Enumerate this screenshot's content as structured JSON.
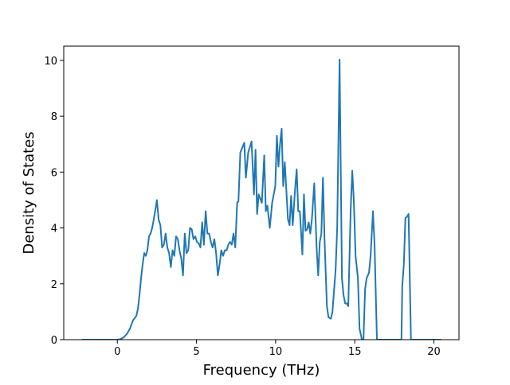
{
  "chart_data": {
    "type": "line",
    "xlabel": "Frequency (THz)",
    "ylabel": "Density of States",
    "color": "#1f77b4",
    "xlim": [
      -3.385,
      21.585
    ],
    "ylim": [
      0,
      10.51
    ],
    "xticks": [
      0,
      5,
      10,
      15,
      20
    ],
    "yticks": [
      0,
      2,
      4,
      6,
      8,
      10
    ],
    "x": [
      -2.25,
      0,
      0.2,
      0.4,
      0.6,
      0.8,
      1.0,
      1.2,
      1.3,
      1.4,
      1.5,
      1.6,
      1.7,
      1.8,
      1.9,
      2.0,
      2.1,
      2.2,
      2.3,
      2.5,
      2.61,
      2.72,
      2.83,
      2.94,
      3.05,
      3.16,
      3.27,
      3.38,
      3.49,
      3.6,
      3.71,
      3.82,
      3.93,
      4.04,
      4.15,
      4.26,
      4.37,
      4.48,
      4.59,
      4.7,
      4.81,
      4.92,
      5.03,
      5.14,
      5.25,
      5.36,
      5.47,
      5.58,
      5.69,
      5.8,
      5.91,
      6.02,
      6.13,
      6.24,
      6.35,
      6.46,
      6.57,
      6.68,
      6.79,
      6.9,
      7.01,
      7.12,
      7.23,
      7.34,
      7.45,
      7.57,
      7.65,
      7.77,
      8.02,
      8.12,
      8.27,
      8.48,
      8.63,
      8.73,
      8.83,
      8.93,
      9.13,
      9.28,
      9.38,
      9.48,
      9.63,
      9.78,
      9.98,
      10.08,
      10.18,
      10.28,
      10.38,
      10.48,
      10.58,
      10.78,
      10.88,
      10.98,
      11.08,
      11.23,
      11.33,
      11.43,
      11.53,
      11.69,
      11.79,
      11.89,
      11.99,
      12.09,
      12.19,
      12.29,
      12.44,
      12.59,
      12.69,
      12.79,
      12.89,
      12.99,
      13.09,
      13.24,
      13.34,
      13.49,
      13.59,
      13.79,
      13.89,
      14.04,
      14.19,
      14.29,
      14.39,
      14.49,
      14.59,
      14.74,
      14.84,
      14.94,
      15.05,
      15.2,
      15.3,
      15.45,
      15.55,
      15.65,
      15.75,
      15.9,
      16.0,
      16.15,
      16.25,
      16.4,
      17.95,
      18.0,
      18.1,
      18.2,
      18.3,
      18.4,
      18.55,
      20.45
    ],
    "values": [
      0,
      0,
      0.02,
      0.08,
      0.2,
      0.4,
      0.7,
      0.85,
      1.1,
      1.6,
      2.2,
      2.7,
      3.1,
      3.0,
      3.2,
      3.7,
      3.8,
      4.0,
      4.3,
      5.0,
      4.3,
      4.1,
      3.3,
      3.4,
      3.8,
      3.3,
      3.1,
      2.6,
      3.2,
      3.0,
      3.7,
      3.6,
      3.2,
      2.9,
      2.3,
      3.8,
      3.1,
      3.2,
      4.0,
      3.95,
      3.6,
      3.7,
      3.5,
      3.45,
      3.3,
      4.2,
      3.4,
      4.6,
      3.8,
      3.8,
      3.5,
      3.3,
      3.6,
      3.1,
      2.3,
      2.7,
      3.2,
      3.0,
      3.2,
      3.2,
      3.4,
      3.5,
      3.4,
      3.8,
      3.3,
      4.9,
      4.95,
      6.7,
      7.05,
      5.8,
      6.7,
      7.1,
      5.2,
      6.8,
      4.5,
      5.2,
      4.9,
      6.6,
      4.6,
      4.8,
      4.0,
      4.9,
      5.5,
      7.3,
      6.2,
      7.0,
      7.55,
      5.5,
      6.35,
      4.3,
      4.1,
      5.15,
      4.1,
      5.4,
      6.1,
      4.6,
      4.6,
      3.05,
      5.2,
      3.9,
      3.95,
      4.2,
      3.8,
      4.3,
      5.6,
      3.3,
      2.3,
      3.5,
      3.8,
      5.8,
      3.6,
      1.2,
      0.8,
      0.75,
      1.0,
      2.5,
      4.0,
      10.03,
      2.2,
      1.6,
      1.3,
      1.3,
      1.2,
      4.6,
      6.05,
      5.0,
      3.0,
      2.2,
      0.4,
      0,
      0,
      1.8,
      2.2,
      2.4,
      3.0,
      4.6,
      3.4,
      0,
      0,
      1.9,
      2.7,
      4.35,
      4.4,
      4.5,
      0,
      0
    ]
  }
}
